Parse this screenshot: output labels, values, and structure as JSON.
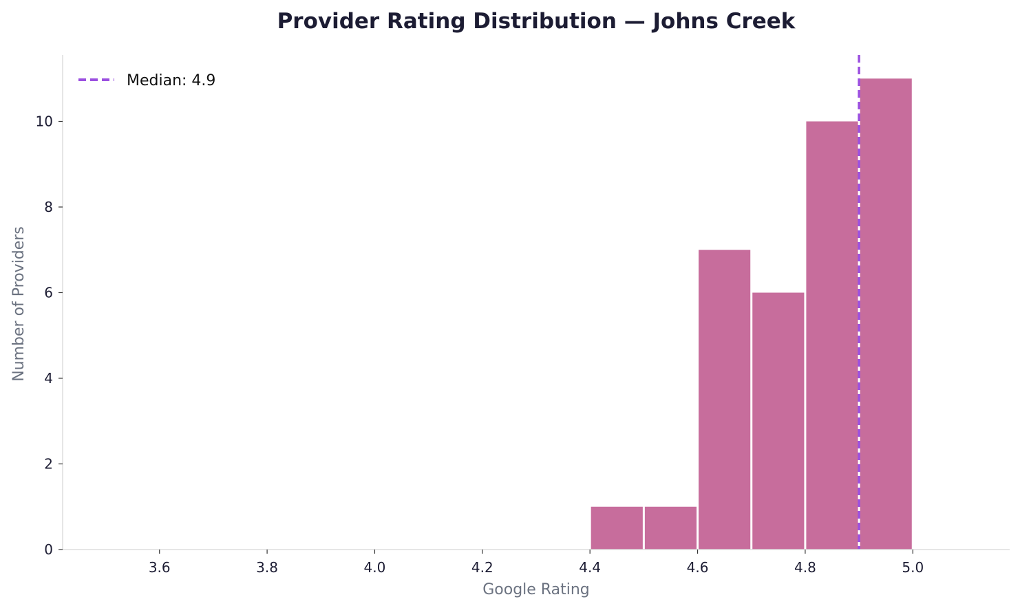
{
  "chart_data": {
    "type": "bar",
    "title": "Provider Rating Distribution — Johns Creek",
    "xlabel": "Google Rating",
    "ylabel": "Number of Providers",
    "bins": [
      {
        "start": 4.4,
        "end": 4.5,
        "count": 1
      },
      {
        "start": 4.5,
        "end": 4.6,
        "count": 1
      },
      {
        "start": 4.6,
        "end": 4.7,
        "count": 7
      },
      {
        "start": 4.7,
        "end": 4.8,
        "count": 6
      },
      {
        "start": 4.8,
        "end": 4.9,
        "count": 10
      },
      {
        "start": 4.9,
        "end": 5.0,
        "count": 11
      }
    ],
    "median": 4.9,
    "median_label": "Median: 4.9",
    "xlim": [
      3.42,
      5.18
    ],
    "ylim": [
      0,
      11.55
    ],
    "xticks": [
      3.6,
      3.8,
      4.0,
      4.2,
      4.4,
      4.6,
      4.8,
      5.0
    ],
    "xtick_labels": [
      "3.6",
      "3.8",
      "4.0",
      "4.2",
      "4.4",
      "4.6",
      "4.8",
      "5.0"
    ],
    "yticks": [
      0,
      2,
      4,
      6,
      8,
      10
    ],
    "ytick_labels": [
      "0",
      "2",
      "4",
      "6",
      "8",
      "10"
    ],
    "grid": false,
    "legend_position": "top-left",
    "colors": {
      "bar": "#c76d9c",
      "median_line": "#9b4fe0",
      "axis": "#dddddd",
      "title": "#1c1c33",
      "axis_label": "#6b7280",
      "tick_label": "#1c1c33"
    }
  }
}
